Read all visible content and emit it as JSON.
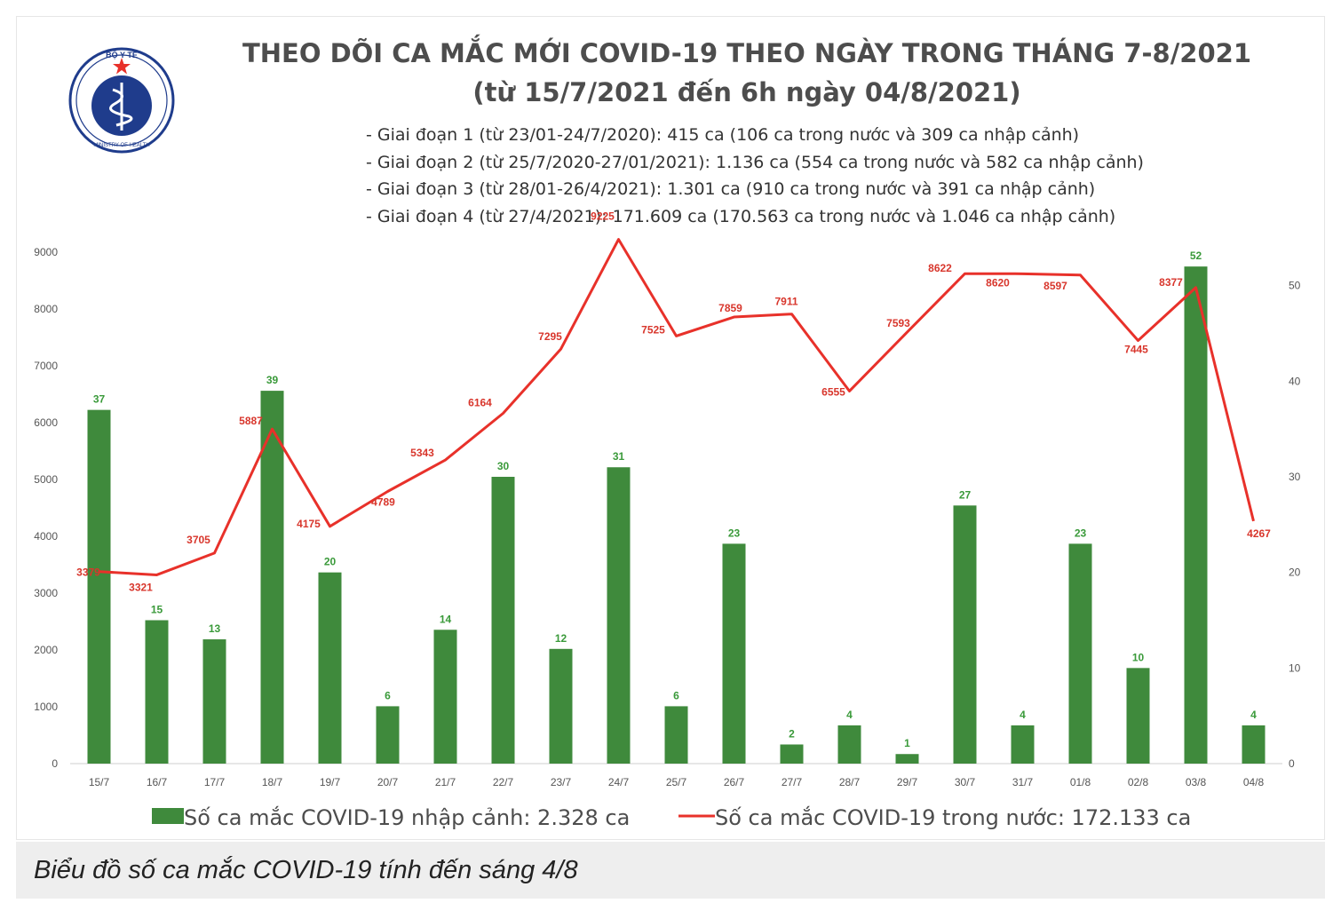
{
  "chart_data": {
    "type": "bar+line",
    "title": "THEO DÕI CA MẮC MỚI COVID-19 THEO NGÀY TRONG THÁNG 7-8/2021",
    "subtitle": "(từ 15/7/2021 đến 6h ngày 04/8/2021)",
    "phases": [
      "- Giai đoạn 1 (từ 23/01-24/7/2020): 415 ca (106 ca trong nước và 309 ca nhập cảnh)",
      "- Giai đoạn 2 (từ 25/7/2020-27/01/2021): 1.136 ca (554 ca trong nước và 582 ca nhập cảnh)",
      "- Giai đoạn 3 (từ 28/01-26/4/2021): 1.301 ca (910 ca trong nước và 391 ca nhập cảnh)",
      "- Giai đoạn 4 (từ 27/4/2021): 171.609 ca (170.563 ca trong nước và 1.046 ca nhập cảnh)"
    ],
    "categories": [
      "15/7",
      "16/7",
      "17/7",
      "18/7",
      "19/7",
      "20/7",
      "21/7",
      "22/7",
      "23/7",
      "24/7",
      "25/7",
      "26/7",
      "27/7",
      "28/7",
      "29/7",
      "30/7",
      "31/7",
      "01/8",
      "02/8",
      "03/8",
      "04/8"
    ],
    "series": [
      {
        "name": "Số ca mắc COVID-19 nhập cảnh: 2.328 ca",
        "type": "bar",
        "axis": "right",
        "color": "#3f8a3c",
        "label_color": "#3a9a3a",
        "values": [
          37,
          15,
          13,
          39,
          20,
          6,
          14,
          30,
          12,
          31,
          6,
          23,
          2,
          4,
          1,
          27,
          4,
          23,
          10,
          52,
          4
        ]
      },
      {
        "name": "Số ca mắc COVID-19 trong nước: 172.133 ca",
        "type": "line",
        "axis": "left",
        "color": "#e8312a",
        "label_color": "#d8362c",
        "values": [
          3379,
          3321,
          3705,
          5887,
          4175,
          4789,
          5343,
          6164,
          7295,
          9225,
          7525,
          7859,
          7911,
          6555,
          7593,
          8622,
          8620,
          8597,
          7445,
          8377,
          4267
        ]
      }
    ],
    "y_left": {
      "min": 0,
      "max": 9000,
      "ticks": [
        "0",
        "1000",
        "2000",
        "3000",
        "4000",
        "5000",
        "6000",
        "7000",
        "8000",
        "9000"
      ]
    },
    "y_right": {
      "min": 0,
      "max": 53.5,
      "ticks": [
        "0",
        "10",
        "20",
        "30",
        "40",
        "50"
      ]
    },
    "grid": false,
    "legend_position": "bottom"
  },
  "logo": {
    "name": "Bộ Y Tế emblem",
    "top_text": "BỘ Y TẾ",
    "bottom_text": "MINISTRY OF HEALTH",
    "color": "#1f3c8c"
  },
  "caption": "Biểu đồ số ca mắc COVID-19 tính đến sáng 4/8"
}
